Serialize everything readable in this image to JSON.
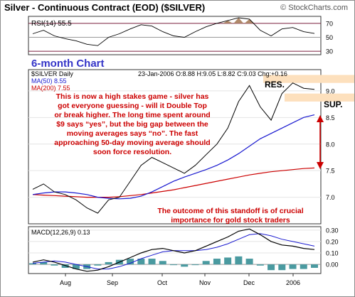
{
  "header": {
    "title": "Silver - Continuous Contract (EOD) ($SILVER)",
    "copyright": "© StockCharts.com"
  },
  "colors": {
    "price_line": "#000000",
    "ma50": "#1a1ad0",
    "ma200": "#cc0000",
    "annotation_text": "#cc0000",
    "section_title": "#3535c8",
    "rsi_fill": "#b08a6a",
    "band_fill": "#fde0bd",
    "macd_line": "#000000",
    "macd_signal": "#1a1ad0",
    "histogram": "#4a9aa0"
  },
  "rsi_panel": {
    "label": "RSI(14) 55.5",
    "ticks": [
      "70",
      "50",
      "30"
    ]
  },
  "section_title": "6-month Chart",
  "price_panel": {
    "symbol_label": "$SILVER Daily",
    "quote": "23-Jan-2006  O:8.88  H:9.05  L:8.82  C:9.03  Chg:+0.16",
    "ma50_label": "MA(50) 8.55",
    "ma200_label": "MA(200) 7.55",
    "res_label": "RES.",
    "sup_label": "SUP.",
    "annotation_main": [
      "This is now a high stakes game - silver has",
      "got everyone guessing - will it Double Top",
      "or break higher. The long time spent around",
      "$9 says “yes”, but the big gap between the",
      "moving averages says “no”. The fast",
      "approaching 50-day moving average should",
      "soon force resolution."
    ],
    "annotation_bottom": [
      "The outcome of this standoff is of crucial",
      "importance for gold stock traders"
    ],
    "y_ticks": [
      "9.0",
      "8.5",
      "8.0",
      "7.5",
      "7.0"
    ]
  },
  "macd_panel": {
    "label": "MACD(12,26,9) 0.13",
    "ticks": [
      "0.30",
      "0.20",
      "0.10",
      "0.00"
    ]
  },
  "x_axis": {
    "ticks": [
      "Aug",
      "Sep",
      "Oct",
      "Nov",
      "Dec",
      "2006"
    ]
  },
  "chart_data": {
    "type": "line",
    "title": "Silver - Continuous Contract (EOD) ($SILVER)",
    "x": [
      "2005-07-25",
      "2005-08-01",
      "2005-08-08",
      "2005-08-15",
      "2005-08-22",
      "2005-08-29",
      "2005-09-05",
      "2005-09-12",
      "2005-09-19",
      "2005-09-26",
      "2005-10-03",
      "2005-10-10",
      "2005-10-17",
      "2005-10-24",
      "2005-10-31",
      "2005-11-07",
      "2005-11-14",
      "2005-11-21",
      "2005-11-28",
      "2005-12-05",
      "2005-12-12",
      "2005-12-19",
      "2005-12-26",
      "2006-01-02",
      "2006-01-09",
      "2006-01-16",
      "2006-01-23"
    ],
    "series": [
      {
        "name": "$SILVER Daily",
        "values": [
          7.15,
          7.25,
          7.1,
          7.05,
          6.95,
          6.8,
          6.7,
          6.95,
          7.0,
          7.3,
          7.6,
          7.75,
          7.65,
          7.55,
          7.45,
          7.6,
          7.8,
          8.0,
          8.3,
          8.8,
          9.1,
          8.7,
          8.45,
          8.95,
          9.15,
          9.05,
          9.03
        ]
      },
      {
        "name": "MA(50)",
        "values": [
          7.05,
          7.08,
          7.1,
          7.1,
          7.08,
          7.05,
          7.0,
          6.98,
          6.97,
          6.98,
          7.02,
          7.1,
          7.2,
          7.3,
          7.38,
          7.45,
          7.52,
          7.6,
          7.7,
          7.82,
          7.96,
          8.1,
          8.2,
          8.3,
          8.4,
          8.5,
          8.55
        ]
      },
      {
        "name": "MA(200)",
        "values": [
          7.05,
          7.04,
          7.03,
          7.02,
          7.01,
          7.0,
          7.0,
          7.0,
          7.01,
          7.03,
          7.05,
          7.08,
          7.11,
          7.14,
          7.18,
          7.22,
          7.26,
          7.3,
          7.34,
          7.38,
          7.42,
          7.45,
          7.48,
          7.5,
          7.52,
          7.54,
          7.55
        ]
      }
    ],
    "ylim": [
      6.5,
      9.4
    ],
    "resistance": [
      9.15,
      9.3
    ],
    "support": [
      8.8,
      8.95
    ],
    "rsi": {
      "ylim": [
        25,
        80
      ],
      "values": [
        55,
        60,
        52,
        48,
        45,
        40,
        38,
        50,
        55,
        62,
        68,
        66,
        58,
        52,
        50,
        58,
        65,
        70,
        74,
        78,
        76,
        60,
        52,
        62,
        64,
        58,
        55.5
      ]
    },
    "macd": {
      "ylim": [
        -0.08,
        0.33
      ],
      "macd": [
        0.02,
        0.04,
        0.02,
        -0.01,
        -0.04,
        -0.06,
        -0.05,
        -0.02,
        0.02,
        0.06,
        0.1,
        0.13,
        0.14,
        0.12,
        0.1,
        0.12,
        0.16,
        0.2,
        0.24,
        0.29,
        0.31,
        0.26,
        0.2,
        0.17,
        0.16,
        0.14,
        0.13
      ],
      "signal": [
        0.01,
        0.02,
        0.03,
        0.02,
        0.0,
        -0.02,
        -0.04,
        -0.04,
        -0.02,
        0.01,
        0.05,
        0.08,
        0.11,
        0.12,
        0.12,
        0.12,
        0.13,
        0.15,
        0.18,
        0.22,
        0.26,
        0.27,
        0.25,
        0.22,
        0.2,
        0.18,
        0.16
      ],
      "histogram": [
        0.01,
        0.02,
        -0.01,
        -0.03,
        -0.04,
        -0.04,
        -0.01,
        0.02,
        0.04,
        0.05,
        0.05,
        0.05,
        0.03,
        0.0,
        -0.02,
        0.0,
        0.03,
        0.05,
        0.06,
        0.07,
        0.05,
        -0.01,
        -0.05,
        -0.05,
        -0.04,
        -0.04,
        -0.03
      ]
    }
  }
}
